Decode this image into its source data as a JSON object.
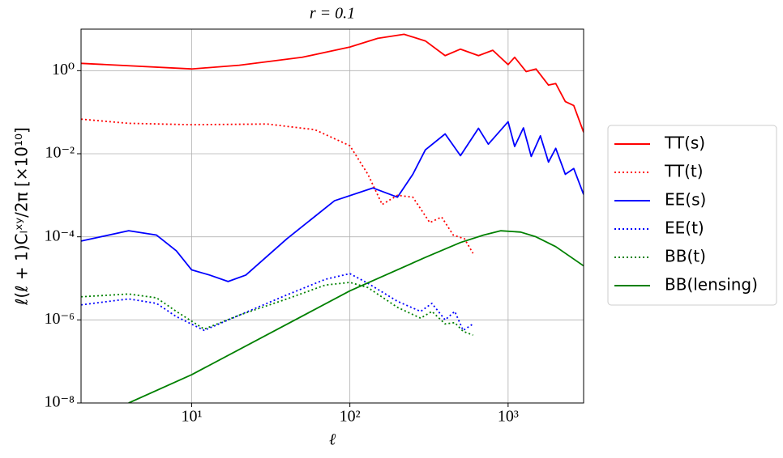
{
  "chart_data": {
    "type": "line",
    "title": "r = 0.1",
    "x_label": "ℓ",
    "y_label": "ℓ(ℓ + 1)Cₗˣʸ/2π  [×10¹⁰]",
    "xscale": "log",
    "yscale": "log",
    "grid": true,
    "legend": "outside right",
    "xlim": [
      2,
      3000
    ],
    "ylim": [
      1e-08,
      10
    ],
    "xticks": [
      {
        "value": 10,
        "label": "10¹"
      },
      {
        "value": 100,
        "label": "10²"
      },
      {
        "value": 1000,
        "label": "10³"
      }
    ],
    "yticks": [
      {
        "value": 1e-08,
        "label": "10⁻⁸"
      },
      {
        "value": 1e-06,
        "label": "10⁻⁶"
      },
      {
        "value": 0.0001,
        "label": "10⁻⁴"
      },
      {
        "value": 0.01,
        "label": "10⁻²"
      },
      {
        "value": 1,
        "label": "10⁰"
      }
    ],
    "series": [
      {
        "name": "TT(s)",
        "color": "#ff0000",
        "linestyle": "solid",
        "x": [
          2,
          10,
          20,
          50,
          100,
          150,
          220,
          300,
          400,
          500,
          650,
          800,
          1000,
          1100,
          1300,
          1500,
          1800,
          2000,
          2300,
          2600,
          3000
        ],
        "values": [
          1.5,
          1.1,
          1.35,
          2.1,
          3.7,
          6,
          7.5,
          5.2,
          2.3,
          3.3,
          2.3,
          3.1,
          1.4,
          2.1,
          0.95,
          1.1,
          0.45,
          0.49,
          0.18,
          0.145,
          0.033
        ]
      },
      {
        "name": "TT(t)",
        "color": "#ff0000",
        "linestyle": "dotted",
        "x": [
          2,
          4,
          10,
          30,
          60,
          100,
          130,
          160,
          200,
          250,
          320,
          380,
          450,
          530,
          600
        ],
        "values": [
          0.068,
          0.054,
          0.05,
          0.052,
          0.038,
          0.0156,
          0.0032,
          0.0006,
          0.001,
          0.0009,
          0.00022,
          0.0003,
          0.00011,
          9e-05,
          4e-05
        ]
      },
      {
        "name": "EE(s)",
        "color": "#0000ff",
        "linestyle": "solid",
        "x": [
          2,
          4,
          6,
          8,
          10,
          13,
          17,
          22,
          40,
          80,
          140,
          200,
          250,
          300,
          400,
          500,
          650,
          750,
          1000,
          1100,
          1250,
          1400,
          1600,
          1800,
          2000,
          2300,
          2600,
          3000
        ],
        "values": [
          7.9e-05,
          0.00014,
          0.00011,
          4.6e-05,
          1.6e-05,
          1.2e-05,
          8.4e-06,
          1.2e-05,
          9e-05,
          0.00074,
          0.0015,
          0.0009,
          0.0032,
          0.0124,
          0.03,
          0.009,
          0.041,
          0.017,
          0.059,
          0.015,
          0.042,
          0.0086,
          0.027,
          0.0063,
          0.0135,
          0.0032,
          0.0044,
          0.00105
        ]
      },
      {
        "name": "EE(t)",
        "color": "#0000ff",
        "linestyle": "dotted",
        "x": [
          2,
          4,
          6,
          8,
          12,
          20,
          40,
          70,
          100,
          130,
          200,
          280,
          330,
          400,
          460,
          520,
          600
        ],
        "values": [
          2.3e-06,
          3.2e-06,
          2.5e-06,
          1.2e-06,
          5.6e-07,
          1.3e-06,
          4e-06,
          9.5e-06,
          1.3e-05,
          7.6e-06,
          2.8e-06,
          1.6e-06,
          2.5e-06,
          1e-06,
          1.6e-06,
          5.6e-07,
          8e-07
        ]
      },
      {
        "name": "BB(t)",
        "color": "#008000",
        "linestyle": "dotted",
        "x": [
          2,
          4,
          6,
          8,
          12,
          20,
          40,
          70,
          100,
          130,
          200,
          280,
          330,
          400,
          460,
          520,
          600
        ],
        "values": [
          3.6e-06,
          4.2e-06,
          3.4e-06,
          1.6e-06,
          6e-07,
          1.3e-06,
          3.2e-06,
          6.9e-06,
          8e-06,
          6e-06,
          2e-06,
          1.1e-06,
          1.6e-06,
          8e-07,
          8.6e-07,
          5.3e-07,
          4.3e-07
        ]
      },
      {
        "name": "BB(lensing)",
        "color": "#008000",
        "linestyle": "solid",
        "x": [
          4,
          10,
          100,
          300,
          500,
          700,
          900,
          1200,
          1500,
          2000,
          3000
        ],
        "values": [
          1e-08,
          4.8e-08,
          5e-06,
          3.2e-05,
          7.3e-05,
          0.00011,
          0.00014,
          0.00013,
          0.0001,
          5.8e-05,
          2e-05
        ]
      }
    ]
  }
}
